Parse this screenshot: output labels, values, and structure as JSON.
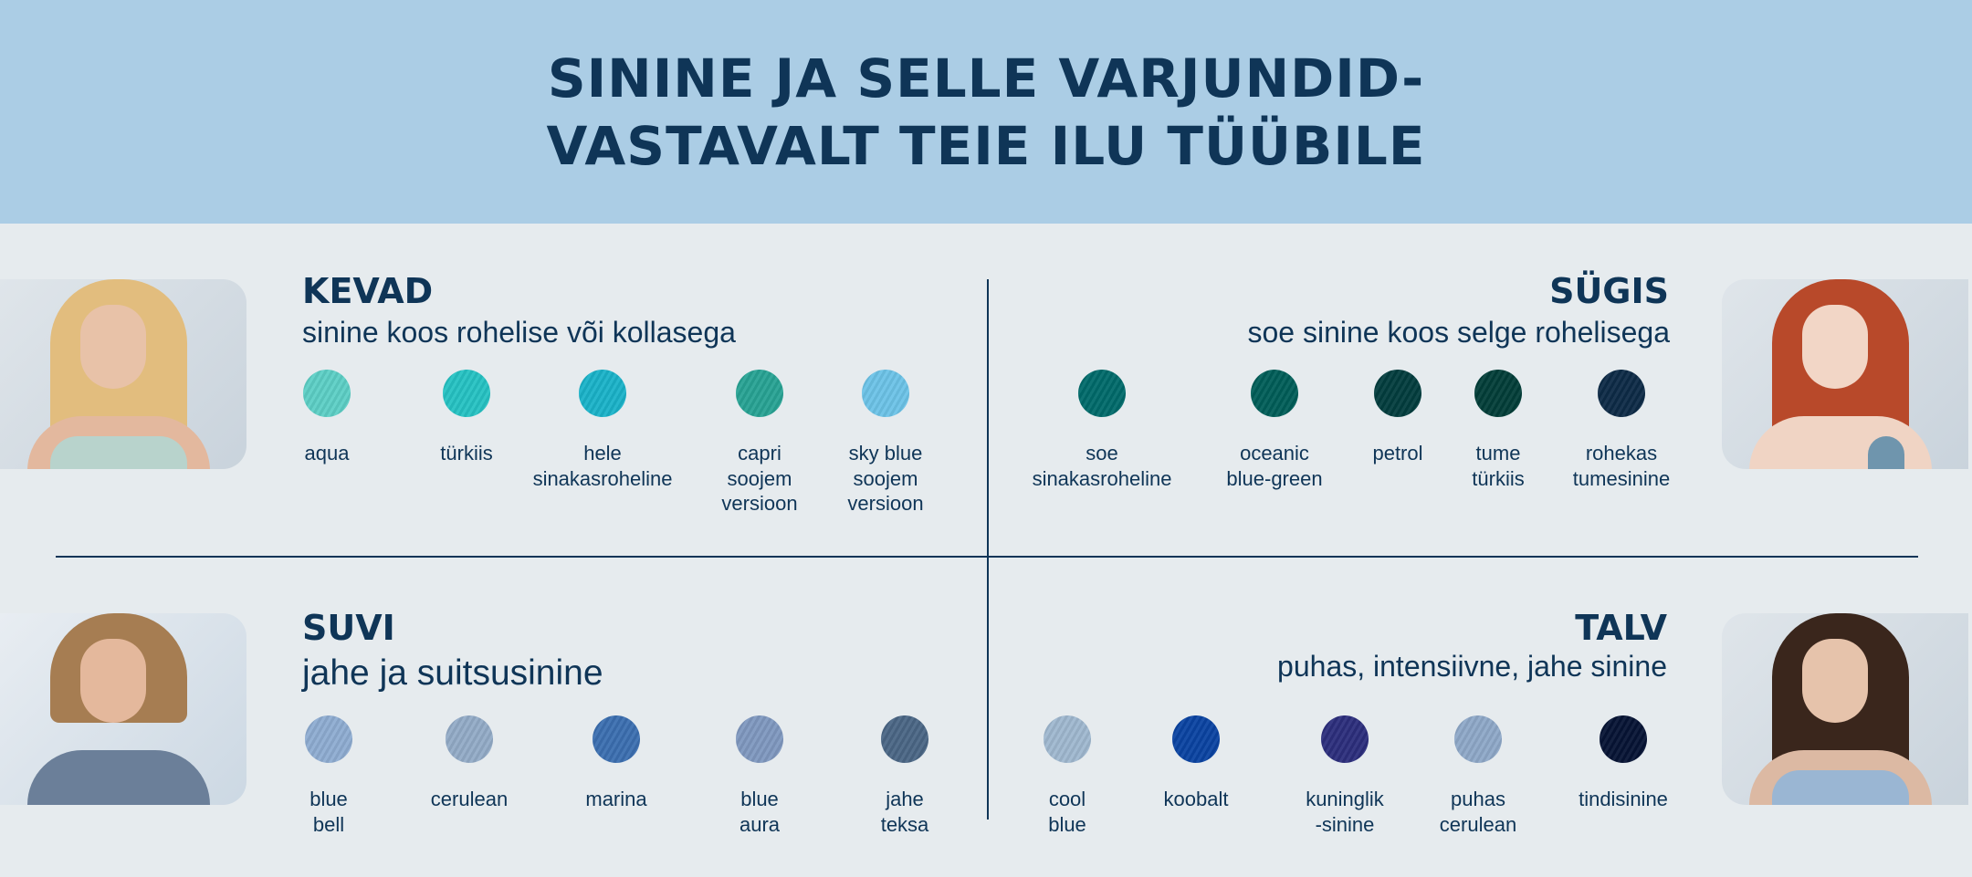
{
  "header": {
    "title_line1": "SININE JA SELLE VARJUNDID-",
    "title_line2": "VASTAVALT TEIE ILU TÜÜBILE"
  },
  "colors": {
    "header_bg": "#abcde5",
    "background": "#e6ebee",
    "text": "#0f3557"
  },
  "seasons": {
    "kevad": {
      "title": "KEVAD",
      "subtitle": "sinine koos rohelise või kollasega",
      "swatches": [
        {
          "label": "aqua",
          "color": "#5ccfc6"
        },
        {
          "label": "türkiis",
          "color": "#25c2c3"
        },
        {
          "label": "hele\nsinakasroheline",
          "color": "#1ab3c9"
        },
        {
          "label": "capri\nsoojem\nversioon",
          "color": "#27a394"
        },
        {
          "label": "sky blue\nsoojem\nversioon",
          "color": "#6cc3e8"
        }
      ]
    },
    "sugis": {
      "title": "SÜGIS",
      "subtitle": "soe sinine koos selge rohelisega",
      "swatches": [
        {
          "label": "soe\nsinakasroheline",
          "color": "#006a6a"
        },
        {
          "label": "oceanic\nblue-green",
          "color": "#005e58"
        },
        {
          "label": "petrol",
          "color": "#023d3e"
        },
        {
          "label": "tume\ntürkiis",
          "color": "#023e38"
        },
        {
          "label": "rohekas\ntumesinine",
          "color": "#0d2a46"
        }
      ]
    },
    "suvi": {
      "title": "SUVI",
      "subtitle": "jahe ja suitsusinine",
      "swatches": [
        {
          "label": "blue\nbell",
          "color": "#8eacd1"
        },
        {
          "label": "cerulean",
          "color": "#93abc7"
        },
        {
          "label": "marina",
          "color": "#3b6fb0"
        },
        {
          "label": "blue\naura",
          "color": "#7f98bf"
        },
        {
          "label": "jahe\nteksa",
          "color": "#4a6685"
        }
      ]
    },
    "talv": {
      "title": "TALV",
      "subtitle": "puhas, intensiivne, jahe sinine",
      "swatches": [
        {
          "label": "cool\nblue",
          "color": "#9fb8cf"
        },
        {
          "label": "koobalt",
          "color": "#0a43a2"
        },
        {
          "label": "kuninglik\n-sinine",
          "color": "#2c2e7c"
        },
        {
          "label": "puhas\ncerulean",
          "color": "#8ea8c8"
        },
        {
          "label": "tindisinine",
          "color": "#061334"
        }
      ]
    }
  }
}
